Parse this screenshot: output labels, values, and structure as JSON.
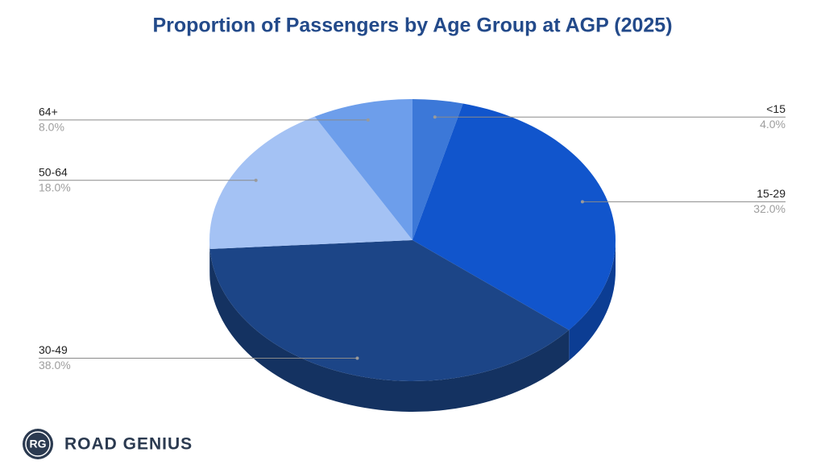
{
  "chart_data": {
    "type": "pie",
    "title": "Proportion of Passengers by Age Group at AGP (2025)",
    "categories": [
      "<15",
      "15-29",
      "30-49",
      "50-64",
      "64+"
    ],
    "values": [
      4.0,
      32.0,
      38.0,
      18.0,
      8.0
    ],
    "value_labels": [
      "4.0%",
      "32.0%",
      "38.0%",
      "18.0%",
      "8.0%"
    ],
    "colors": [
      "#3c78d8",
      "#1155cc",
      "#1c4587",
      "#a4c2f4",
      "#6d9eeb"
    ]
  },
  "logo": {
    "initials": "RG",
    "name": "ROAD GENIUS"
  }
}
